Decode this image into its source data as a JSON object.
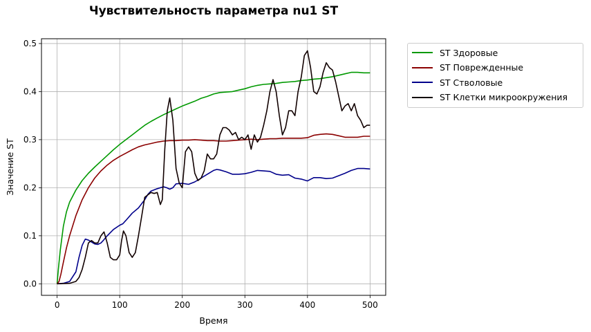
{
  "chart_data": {
    "type": "line",
    "title": "Чувствительность параметра nu1 ST",
    "xlabel": "Время",
    "ylabel": "Значение ST",
    "xlim": [
      -25,
      525
    ],
    "ylim": [
      -0.024,
      0.51
    ],
    "xticks": [
      0,
      100,
      200,
      300,
      400,
      500
    ],
    "xtick_labels": [
      "0",
      "100",
      "200",
      "300",
      "400",
      "500"
    ],
    "yticks": [
      0.0,
      0.1,
      0.2,
      0.3,
      0.4,
      0.5
    ],
    "ytick_labels": [
      "0.0",
      "0.1",
      "0.2",
      "0.3",
      "0.4",
      "0.5"
    ],
    "grid": true,
    "legend_position": "outside-upper-right",
    "series": [
      {
        "name": "ST Здоровые",
        "color": "#009900",
        "points": [
          [
            0,
            0
          ],
          [
            2,
            0.03
          ],
          [
            5,
            0.07
          ],
          [
            10,
            0.12
          ],
          [
            15,
            0.15
          ],
          [
            20,
            0.17
          ],
          [
            30,
            0.195
          ],
          [
            40,
            0.215
          ],
          [
            50,
            0.23
          ],
          [
            60,
            0.243
          ],
          [
            70,
            0.255
          ],
          [
            80,
            0.267
          ],
          [
            90,
            0.279
          ],
          [
            100,
            0.29
          ],
          [
            110,
            0.3
          ],
          [
            120,
            0.31
          ],
          [
            130,
            0.32
          ],
          [
            140,
            0.33
          ],
          [
            150,
            0.338
          ],
          [
            160,
            0.345
          ],
          [
            170,
            0.352
          ],
          [
            180,
            0.358
          ],
          [
            190,
            0.364
          ],
          [
            200,
            0.37
          ],
          [
            210,
            0.375
          ],
          [
            220,
            0.38
          ],
          [
            230,
            0.386
          ],
          [
            240,
            0.39
          ],
          [
            250,
            0.395
          ],
          [
            260,
            0.398
          ],
          [
            270,
            0.399
          ],
          [
            280,
            0.4
          ],
          [
            290,
            0.403
          ],
          [
            300,
            0.406
          ],
          [
            310,
            0.41
          ],
          [
            320,
            0.413
          ],
          [
            330,
            0.415
          ],
          [
            340,
            0.416
          ],
          [
            350,
            0.417
          ],
          [
            360,
            0.419
          ],
          [
            370,
            0.42
          ],
          [
            380,
            0.421
          ],
          [
            390,
            0.423
          ],
          [
            400,
            0.424
          ],
          [
            410,
            0.426
          ],
          [
            420,
            0.427
          ],
          [
            430,
            0.429
          ],
          [
            440,
            0.431
          ],
          [
            450,
            0.434
          ],
          [
            460,
            0.437
          ],
          [
            470,
            0.44
          ],
          [
            480,
            0.44
          ],
          [
            490,
            0.439
          ],
          [
            500,
            0.439
          ]
        ]
      },
      {
        "name": "ST Поврежденные",
        "color": "#8b0000",
        "points": [
          [
            0,
            0
          ],
          [
            3,
            0.005
          ],
          [
            6,
            0.02
          ],
          [
            10,
            0.045
          ],
          [
            15,
            0.075
          ],
          [
            20,
            0.1
          ],
          [
            30,
            0.142
          ],
          [
            40,
            0.175
          ],
          [
            50,
            0.2
          ],
          [
            60,
            0.22
          ],
          [
            70,
            0.235
          ],
          [
            80,
            0.247
          ],
          [
            90,
            0.257
          ],
          [
            100,
            0.265
          ],
          [
            110,
            0.272
          ],
          [
            120,
            0.279
          ],
          [
            130,
            0.285
          ],
          [
            140,
            0.289
          ],
          [
            150,
            0.292
          ],
          [
            160,
            0.295
          ],
          [
            170,
            0.297
          ],
          [
            180,
            0.298
          ],
          [
            190,
            0.298
          ],
          [
            200,
            0.299
          ],
          [
            210,
            0.299
          ],
          [
            220,
            0.3
          ],
          [
            230,
            0.299
          ],
          [
            240,
            0.298
          ],
          [
            250,
            0.298
          ],
          [
            260,
            0.297
          ],
          [
            270,
            0.297
          ],
          [
            280,
            0.298
          ],
          [
            290,
            0.299
          ],
          [
            300,
            0.3
          ],
          [
            310,
            0.301
          ],
          [
            320,
            0.3
          ],
          [
            330,
            0.301
          ],
          [
            340,
            0.302
          ],
          [
            350,
            0.302
          ],
          [
            360,
            0.303
          ],
          [
            370,
            0.303
          ],
          [
            380,
            0.303
          ],
          [
            390,
            0.303
          ],
          [
            400,
            0.304
          ],
          [
            410,
            0.309
          ],
          [
            420,
            0.311
          ],
          [
            430,
            0.312
          ],
          [
            440,
            0.311
          ],
          [
            450,
            0.308
          ],
          [
            460,
            0.305
          ],
          [
            470,
            0.305
          ],
          [
            480,
            0.305
          ],
          [
            490,
            0.307
          ],
          [
            500,
            0.307
          ]
        ]
      },
      {
        "name": "ST Стволовые",
        "color": "#00008b",
        "points": [
          [
            0,
            0
          ],
          [
            10,
            0.001
          ],
          [
            20,
            0.005
          ],
          [
            30,
            0.025
          ],
          [
            35,
            0.055
          ],
          [
            40,
            0.08
          ],
          [
            45,
            0.093
          ],
          [
            50,
            0.091
          ],
          [
            55,
            0.087
          ],
          [
            60,
            0.083
          ],
          [
            65,
            0.082
          ],
          [
            70,
            0.085
          ],
          [
            75,
            0.092
          ],
          [
            80,
            0.1
          ],
          [
            90,
            0.113
          ],
          [
            100,
            0.122
          ],
          [
            105,
            0.125
          ],
          [
            110,
            0.132
          ],
          [
            120,
            0.147
          ],
          [
            130,
            0.158
          ],
          [
            140,
            0.175
          ],
          [
            145,
            0.186
          ],
          [
            150,
            0.193
          ],
          [
            160,
            0.198
          ],
          [
            170,
            0.202
          ],
          [
            175,
            0.2
          ],
          [
            180,
            0.197
          ],
          [
            185,
            0.2
          ],
          [
            190,
            0.208
          ],
          [
            200,
            0.209
          ],
          [
            210,
            0.207
          ],
          [
            220,
            0.212
          ],
          [
            230,
            0.22
          ],
          [
            240,
            0.228
          ],
          [
            250,
            0.236
          ],
          [
            255,
            0.238
          ],
          [
            260,
            0.237
          ],
          [
            270,
            0.233
          ],
          [
            280,
            0.228
          ],
          [
            290,
            0.228
          ],
          [
            300,
            0.229
          ],
          [
            310,
            0.232
          ],
          [
            320,
            0.236
          ],
          [
            330,
            0.235
          ],
          [
            340,
            0.234
          ],
          [
            350,
            0.228
          ],
          [
            360,
            0.226
          ],
          [
            370,
            0.227
          ],
          [
            380,
            0.22
          ],
          [
            390,
            0.218
          ],
          [
            400,
            0.214
          ],
          [
            410,
            0.221
          ],
          [
            420,
            0.221
          ],
          [
            430,
            0.219
          ],
          [
            440,
            0.22
          ],
          [
            450,
            0.225
          ],
          [
            460,
            0.23
          ],
          [
            470,
            0.236
          ],
          [
            480,
            0.24
          ],
          [
            490,
            0.24
          ],
          [
            500,
            0.239
          ]
        ]
      },
      {
        "name": "ST Клетки микроокружения",
        "color": "#110000",
        "points": [
          [
            0,
            0
          ],
          [
            20,
            0.001
          ],
          [
            30,
            0.005
          ],
          [
            35,
            0.013
          ],
          [
            40,
            0.03
          ],
          [
            45,
            0.055
          ],
          [
            50,
            0.085
          ],
          [
            55,
            0.09
          ],
          [
            60,
            0.085
          ],
          [
            65,
            0.085
          ],
          [
            70,
            0.1
          ],
          [
            75,
            0.108
          ],
          [
            80,
            0.085
          ],
          [
            85,
            0.055
          ],
          [
            90,
            0.05
          ],
          [
            95,
            0.05
          ],
          [
            100,
            0.06
          ],
          [
            103,
            0.09
          ],
          [
            106,
            0.11
          ],
          [
            110,
            0.1
          ],
          [
            115,
            0.065
          ],
          [
            120,
            0.055
          ],
          [
            125,
            0.065
          ],
          [
            130,
            0.1
          ],
          [
            135,
            0.14
          ],
          [
            140,
            0.18
          ],
          [
            145,
            0.185
          ],
          [
            150,
            0.19
          ],
          [
            155,
            0.188
          ],
          [
            160,
            0.19
          ],
          [
            165,
            0.165
          ],
          [
            168,
            0.175
          ],
          [
            172,
            0.28
          ],
          [
            176,
            0.36
          ],
          [
            180,
            0.387
          ],
          [
            185,
            0.34
          ],
          [
            190,
            0.24
          ],
          [
            195,
            0.21
          ],
          [
            200,
            0.2
          ],
          [
            205,
            0.275
          ],
          [
            210,
            0.285
          ],
          [
            215,
            0.275
          ],
          [
            220,
            0.23
          ],
          [
            225,
            0.215
          ],
          [
            230,
            0.22
          ],
          [
            235,
            0.235
          ],
          [
            240,
            0.27
          ],
          [
            245,
            0.26
          ],
          [
            250,
            0.26
          ],
          [
            255,
            0.27
          ],
          [
            260,
            0.31
          ],
          [
            265,
            0.325
          ],
          [
            270,
            0.325
          ],
          [
            275,
            0.32
          ],
          [
            280,
            0.31
          ],
          [
            285,
            0.315
          ],
          [
            290,
            0.3
          ],
          [
            295,
            0.305
          ],
          [
            300,
            0.3
          ],
          [
            305,
            0.31
          ],
          [
            310,
            0.28
          ],
          [
            315,
            0.31
          ],
          [
            320,
            0.295
          ],
          [
            325,
            0.305
          ],
          [
            330,
            0.33
          ],
          [
            335,
            0.36
          ],
          [
            340,
            0.4
          ],
          [
            345,
            0.425
          ],
          [
            350,
            0.4
          ],
          [
            355,
            0.35
          ],
          [
            360,
            0.31
          ],
          [
            365,
            0.325
          ],
          [
            370,
            0.36
          ],
          [
            375,
            0.36
          ],
          [
            380,
            0.35
          ],
          [
            385,
            0.4
          ],
          [
            390,
            0.43
          ],
          [
            395,
            0.475
          ],
          [
            400,
            0.485
          ],
          [
            405,
            0.45
          ],
          [
            410,
            0.4
          ],
          [
            415,
            0.395
          ],
          [
            420,
            0.41
          ],
          [
            425,
            0.44
          ],
          [
            430,
            0.46
          ],
          [
            435,
            0.45
          ],
          [
            440,
            0.445
          ],
          [
            445,
            0.42
          ],
          [
            450,
            0.39
          ],
          [
            455,
            0.36
          ],
          [
            460,
            0.37
          ],
          [
            465,
            0.375
          ],
          [
            470,
            0.36
          ],
          [
            475,
            0.375
          ],
          [
            480,
            0.35
          ],
          [
            485,
            0.34
          ],
          [
            490,
            0.325
          ],
          [
            495,
            0.33
          ],
          [
            500,
            0.33
          ]
        ]
      }
    ]
  }
}
